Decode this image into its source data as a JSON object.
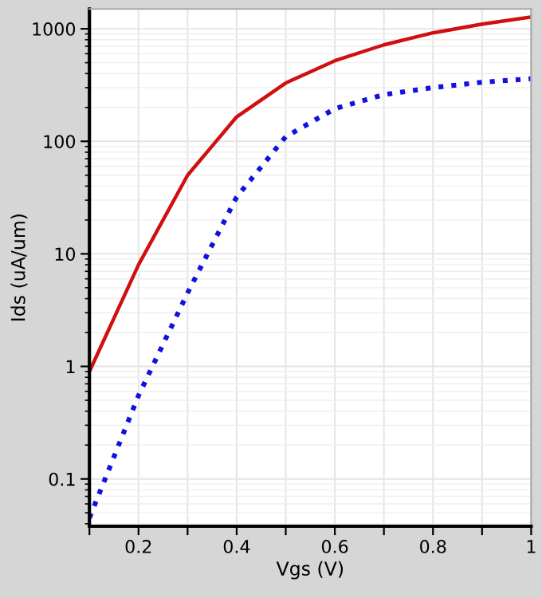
{
  "chart_data": {
    "type": "line",
    "xlabel": "Vgs (V)",
    "ylabel": "Ids (uA/um)",
    "log": "y",
    "x": [
      0.1,
      0.2,
      0.3,
      0.4,
      0.5,
      0.6,
      0.7,
      0.8,
      0.9,
      1.0
    ],
    "series": [
      {
        "color": "#d01010",
        "line_style": "solid",
        "values": [
          0.9,
          8,
          50,
          165,
          330,
          520,
          720,
          920,
          1100,
          1270
        ]
      },
      {
        "color": "#1010e0",
        "line_style": "dotted",
        "values": [
          0.045,
          0.55,
          4.5,
          32,
          110,
          195,
          260,
          300,
          335,
          360
        ]
      }
    ],
    "xlim": [
      0.1,
      1.0
    ],
    "ylim": [
      0.038,
      1500
    ],
    "xticks": [
      {
        "value": 0.1,
        "label": null
      },
      0.2,
      {
        "value": 0.3,
        "label": null
      },
      0.4,
      {
        "value": 0.5,
        "label": null
      },
      0.6,
      {
        "value": 0.7,
        "label": null
      },
      0.8,
      {
        "value": 0.9,
        "label": null
      },
      1
    ],
    "yticks": [
      0.1,
      1,
      10,
      100,
      1000
    ],
    "grid": true,
    "legend": false,
    "marker": "none"
  }
}
